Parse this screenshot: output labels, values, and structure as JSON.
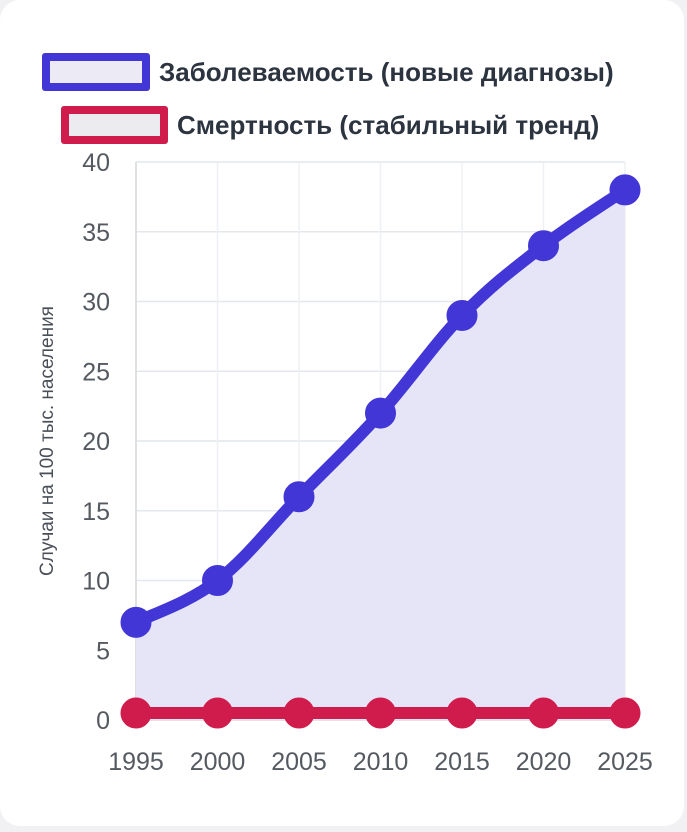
{
  "chart_data": {
    "type": "line",
    "x": [
      1995,
      2000,
      2005,
      2010,
      2015,
      2020,
      2025
    ],
    "ylim": [
      0,
      40
    ],
    "y_ticks": [
      0,
      5,
      10,
      15,
      20,
      25,
      30,
      35,
      40
    ],
    "ylabel": "Случаи на 100 тыс. населения",
    "xlabel": "",
    "grid": true,
    "legend_placement": "top",
    "series": [
      {
        "name": "Заболеваемость (новые диагнозы)",
        "values": [
          7,
          10,
          16,
          22,
          29,
          34,
          38
        ],
        "color": "#4236d6",
        "fill": "#e6e5f8",
        "area": true
      },
      {
        "name": "Смертность (стабильный тренд)",
        "values": [
          0.5,
          0.5,
          0.5,
          0.5,
          0.5,
          0.5,
          0.5
        ],
        "color": "#d01c4c",
        "area": false
      }
    ]
  }
}
